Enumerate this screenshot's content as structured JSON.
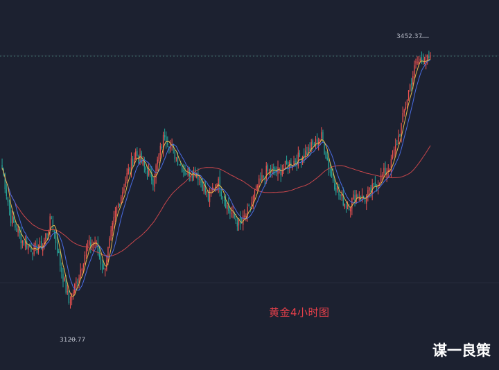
{
  "chart_data": {
    "type": "candlestick",
    "title": "黄金4小时图",
    "watermark": "谋一良策",
    "high_label": "3452.37",
    "low_label": "3120.77",
    "ylim": [
      3080,
      3480
    ],
    "colors": {
      "background": "#1c2130",
      "grid": "#262c3b",
      "up": "#ef5350",
      "down": "#26a69a",
      "ma_fast": "#e6b84a",
      "ma_mid": "#4a6de5",
      "ma_slow": "#c8464b",
      "title": "#e8404a"
    },
    "trend_points": [
      [
        0,
        3305
      ],
      [
        6,
        3240
      ],
      [
        14,
        3210
      ],
      [
        22,
        3198
      ],
      [
        28,
        3205
      ],
      [
        34,
        3240
      ],
      [
        40,
        3180
      ],
      [
        46,
        3130
      ],
      [
        52,
        3160
      ],
      [
        58,
        3200
      ],
      [
        64,
        3210
      ],
      [
        70,
        3170
      ],
      [
        78,
        3245
      ],
      [
        86,
        3295
      ],
      [
        92,
        3325
      ],
      [
        98,
        3305
      ],
      [
        104,
        3290
      ],
      [
        112,
        3350
      ],
      [
        118,
        3325
      ],
      [
        126,
        3300
      ],
      [
        134,
        3300
      ],
      [
        142,
        3265
      ],
      [
        148,
        3290
      ],
      [
        156,
        3250
      ],
      [
        164,
        3230
      ],
      [
        170,
        3250
      ],
      [
        176,
        3280
      ],
      [
        182,
        3300
      ],
      [
        190,
        3300
      ],
      [
        198,
        3310
      ],
      [
        206,
        3320
      ],
      [
        212,
        3330
      ],
      [
        220,
        3345
      ],
      [
        226,
        3300
      ],
      [
        232,
        3270
      ],
      [
        238,
        3255
      ],
      [
        244,
        3270
      ],
      [
        250,
        3265
      ],
      [
        256,
        3280
      ],
      [
        262,
        3295
      ],
      [
        268,
        3310
      ],
      [
        275,
        3360
      ],
      [
        280,
        3405
      ],
      [
        285,
        3440
      ],
      [
        290,
        3448
      ],
      [
        293,
        3445
      ],
      [
        295,
        3442
      ]
    ]
  }
}
